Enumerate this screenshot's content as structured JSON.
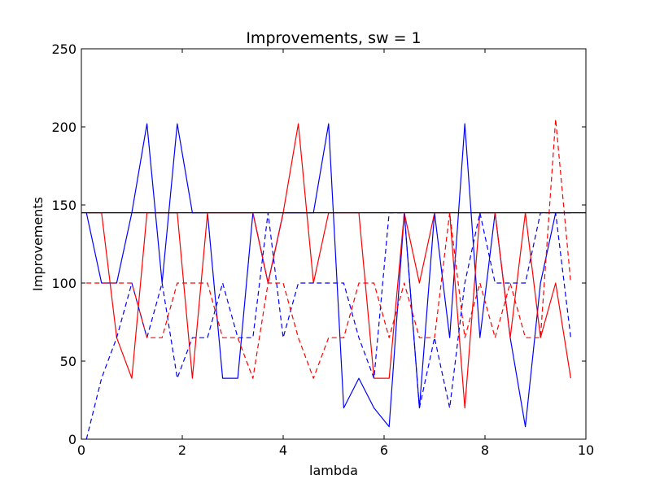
{
  "chart_data": {
    "type": "line",
    "title": "Improvements, sw = 1",
    "xlabel": "lambda",
    "ylabel": "Improvements",
    "xlim": [
      0,
      10
    ],
    "ylim": [
      0,
      250
    ],
    "xticks": [
      0,
      2,
      4,
      6,
      8,
      10
    ],
    "yticks": [
      0,
      50,
      100,
      150,
      200,
      250
    ],
    "grid": false,
    "legend": "none",
    "x": [
      0.1,
      0.4,
      0.7,
      1.0,
      1.3,
      1.6,
      1.9,
      2.2,
      2.5,
      2.8,
      3.1,
      3.4,
      3.7,
      4.0,
      4.3,
      4.6,
      4.9,
      5.2,
      5.5,
      5.8,
      6.1,
      6.4,
      6.7,
      7.0,
      7.3,
      7.6,
      7.9,
      8.2,
      8.5,
      8.8,
      9.1,
      9.4,
      9.7
    ],
    "series": [
      {
        "color": "#0000ff",
        "linestyle": "solid",
        "values": [
          145,
          100,
          100,
          145,
          202,
          100,
          202,
          145,
          145,
          39,
          39,
          145,
          100,
          145,
          145,
          145,
          202,
          20,
          39,
          20,
          8,
          145,
          20,
          145,
          65,
          202,
          65,
          145,
          65,
          8,
          100,
          145,
          145
        ]
      },
      {
        "color": "#ff0000",
        "linestyle": "solid",
        "values": [
          145,
          145,
          65,
          39,
          145,
          145,
          145,
          39,
          145,
          145,
          145,
          145,
          100,
          145,
          202,
          100,
          145,
          145,
          145,
          39,
          39,
          145,
          100,
          145,
          145,
          20,
          145,
          145,
          65,
          145,
          65,
          100,
          39
        ]
      },
      {
        "color": "#0000ff",
        "linestyle": "dashed",
        "values": [
          0,
          39,
          65,
          100,
          65,
          100,
          39,
          65,
          65,
          100,
          65,
          65,
          145,
          65,
          100,
          100,
          100,
          100,
          65,
          39,
          145,
          145,
          20,
          65,
          20,
          100,
          145,
          100,
          100,
          100,
          145,
          145,
          65
        ]
      },
      {
        "color": "#ff0000",
        "linestyle": "dashed",
        "values": [
          100,
          100,
          100,
          100,
          65,
          65,
          100,
          100,
          100,
          65,
          65,
          39,
          100,
          100,
          65,
          39,
          65,
          65,
          100,
          100,
          65,
          100,
          65,
          65,
          145,
          65,
          100,
          65,
          100,
          65,
          65,
          205,
          100
        ]
      }
    ],
    "reference_lines": [
      {
        "y": 145,
        "color": "#000000",
        "linestyle": "solid"
      }
    ]
  }
}
